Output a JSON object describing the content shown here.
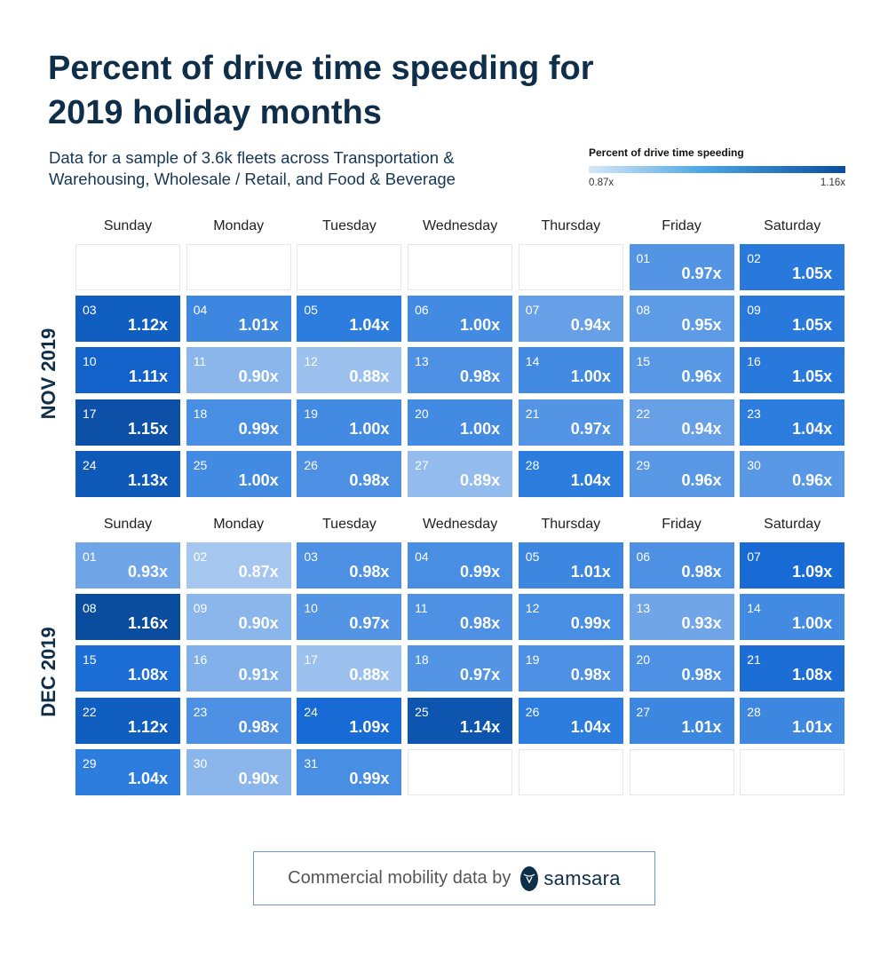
{
  "title": "Percent of drive time speeding for 2019 holiday months",
  "subtitle": "Data for a sample of 3.6k fleets across Transportation & Warehousing, Wholesale / Retail, and Food & Beverage",
  "legend": {
    "title": "Percent of drive time speeding",
    "min_label": "0.87x",
    "max_label": "1.16x",
    "min_color": "#a5c6ef",
    "max_color": "#0a4d9e"
  },
  "footer": {
    "text": "Commercial mobility data by",
    "logo": "samsara"
  },
  "chart_data": {
    "type": "heatmap",
    "title": "Percent of drive time speeding for 2019 holiday months",
    "weekdays": [
      "Sunday",
      "Monday",
      "Tuesday",
      "Wednesday",
      "Thursday",
      "Friday",
      "Saturday"
    ],
    "value_range": [
      0.87,
      1.16
    ],
    "value_suffix": "x",
    "months": [
      {
        "label": "NOV 2019",
        "first_weekday": 5,
        "days": [
          "01",
          "02",
          "03",
          "04",
          "05",
          "06",
          "07",
          "08",
          "09",
          "10",
          "11",
          "12",
          "13",
          "14",
          "15",
          "16",
          "17",
          "18",
          "19",
          "20",
          "21",
          "22",
          "23",
          "24",
          "25",
          "26",
          "27",
          "28",
          "29",
          "30"
        ],
        "values": [
          0.97,
          1.05,
          1.12,
          1.01,
          1.04,
          1.0,
          0.94,
          0.95,
          1.05,
          1.11,
          0.9,
          0.88,
          0.98,
          1.0,
          0.96,
          1.05,
          1.15,
          0.99,
          1.0,
          1.0,
          0.97,
          0.94,
          1.04,
          1.13,
          1.0,
          0.98,
          0.89,
          1.04,
          0.96,
          0.96
        ]
      },
      {
        "label": "DEC 2019",
        "first_weekday": 0,
        "days": [
          "01",
          "02",
          "03",
          "04",
          "05",
          "06",
          "07",
          "08",
          "09",
          "10",
          "11",
          "12",
          "13",
          "14",
          "15",
          "16",
          "17",
          "18",
          "19",
          "20",
          "21",
          "22",
          "23",
          "24",
          "25",
          "26",
          "27",
          "28",
          "29",
          "30",
          "31"
        ],
        "values": [
          0.93,
          0.87,
          0.98,
          0.99,
          1.01,
          0.98,
          1.09,
          1.16,
          0.9,
          0.97,
          0.98,
          0.99,
          0.93,
          1.0,
          1.08,
          0.91,
          0.88,
          0.97,
          0.98,
          0.98,
          1.08,
          1.12,
          0.98,
          1.09,
          1.14,
          1.04,
          1.01,
          1.01,
          1.04,
          0.9,
          0.99
        ]
      }
    ]
  }
}
